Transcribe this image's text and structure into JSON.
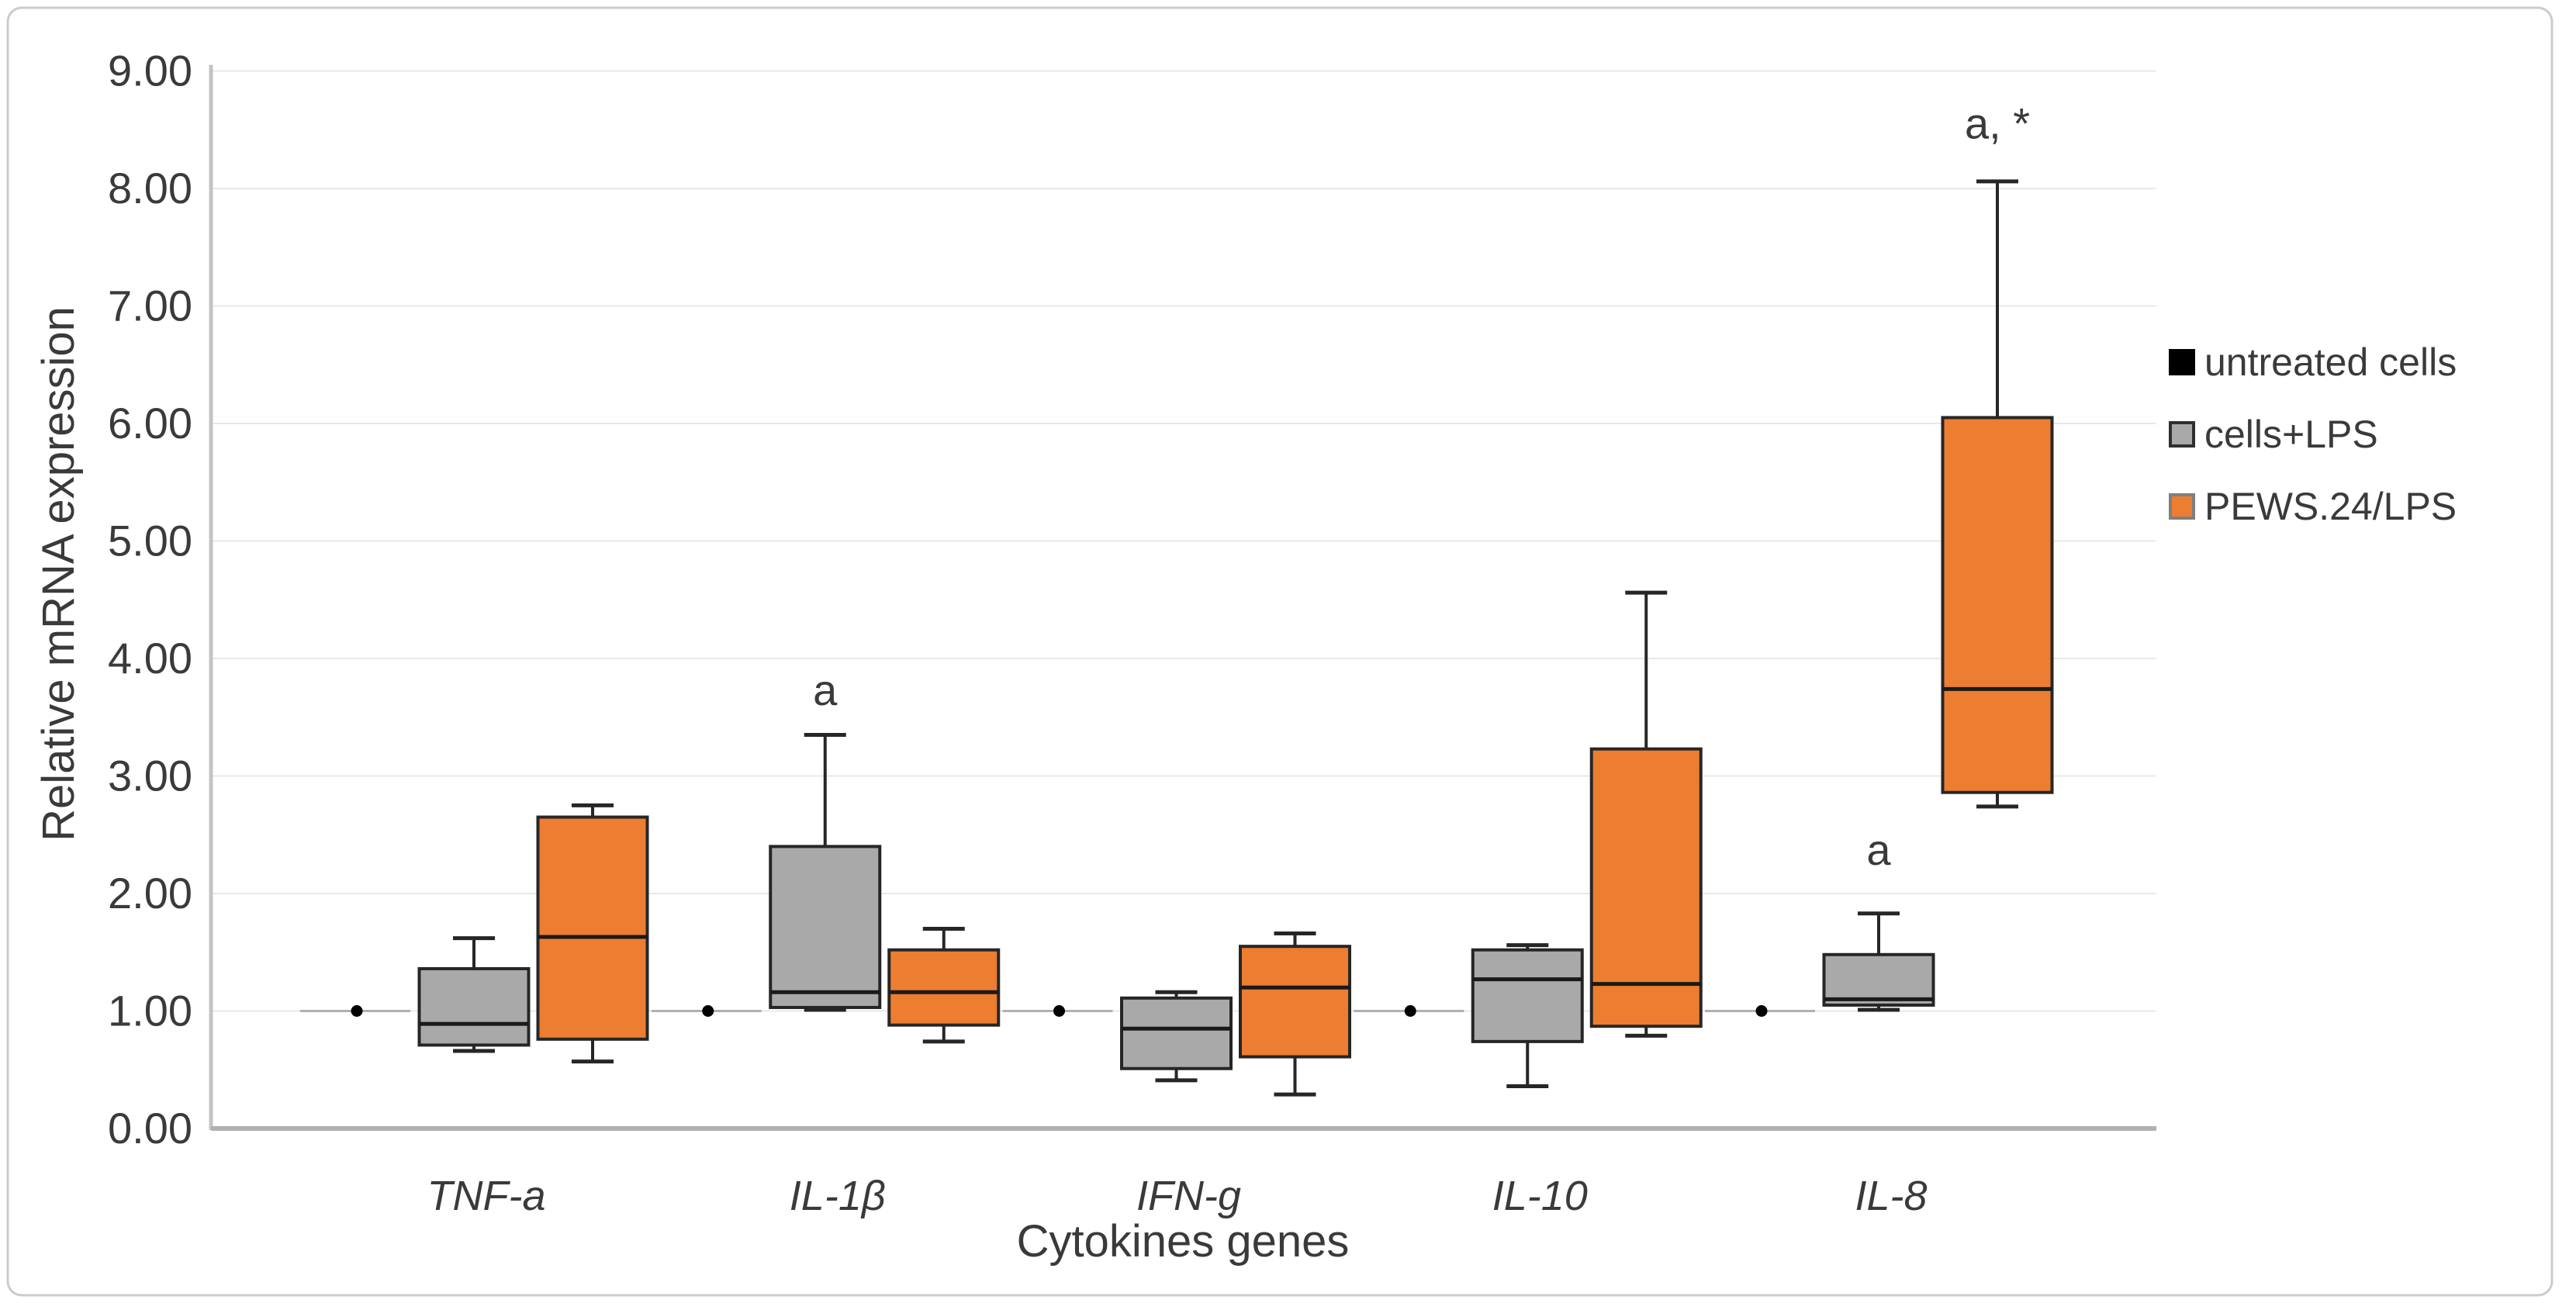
{
  "chart_data": {
    "type": "boxplot",
    "title": "",
    "xlabel": "Cytokines genes",
    "ylabel": "Relative mRNA expression",
    "ylim": [
      0,
      9
    ],
    "ytick_labels": [
      "0.00",
      "1.00",
      "2.00",
      "3.00",
      "4.00",
      "5.00",
      "6.00",
      "7.00",
      "8.00",
      "9.00"
    ],
    "grid": "horizontal",
    "legend_position": "right",
    "categories": [
      "TNF-a",
      "IL-1β",
      "IFN-g",
      "IL-10",
      "IL-8"
    ],
    "series": [
      {
        "name": "untreated cells",
        "type": "point",
        "color": "#000000",
        "values": [
          1.0,
          1.0,
          1.0,
          1.0,
          1.0
        ]
      },
      {
        "name": "cells+LPS",
        "type": "box",
        "color": "#A9A9A9",
        "boxes": [
          {
            "category": "TNF-a",
            "whisker_low": 0.66,
            "q1": 0.71,
            "median": 0.89,
            "q3": 1.36,
            "whisker_high": 1.62
          },
          {
            "category": "IL-1β",
            "whisker_low": 1.01,
            "q1": 1.03,
            "median": 1.16,
            "q3": 2.4,
            "whisker_high": 3.35
          },
          {
            "category": "IFN-g",
            "whisker_low": 0.41,
            "q1": 0.51,
            "median": 0.85,
            "q3": 1.11,
            "whisker_high": 1.16
          },
          {
            "category": "IL-10",
            "whisker_low": 0.36,
            "q1": 0.74,
            "median": 1.27,
            "q3": 1.52,
            "whisker_high": 1.56
          },
          {
            "category": "IL-8",
            "whisker_low": 1.01,
            "q1": 1.05,
            "median": 1.1,
            "q3": 1.48,
            "whisker_high": 1.83
          }
        ]
      },
      {
        "name": "PEWS.24/LPS",
        "type": "box",
        "color": "#ED7D31",
        "boxes": [
          {
            "category": "TNF-a",
            "whisker_low": 0.57,
            "q1": 0.76,
            "median": 1.63,
            "q3": 2.65,
            "whisker_high": 2.75
          },
          {
            "category": "IL-1β",
            "whisker_low": 0.74,
            "q1": 0.88,
            "median": 1.16,
            "q3": 1.52,
            "whisker_high": 1.7
          },
          {
            "category": "IFN-g",
            "whisker_low": 0.29,
            "q1": 0.61,
            "median": 1.2,
            "q3": 1.55,
            "whisker_high": 1.66
          },
          {
            "category": "IL-10",
            "whisker_low": 0.79,
            "q1": 0.87,
            "median": 1.23,
            "q3": 3.23,
            "whisker_high": 4.56
          },
          {
            "category": "IL-8",
            "whisker_low": 2.74,
            "q1": 2.86,
            "median": 3.74,
            "q3": 6.05,
            "whisker_high": 8.06
          }
        ]
      }
    ],
    "legend": [
      {
        "label": "untreated cells",
        "fill": "#000000",
        "border": "#000000"
      },
      {
        "label": "cells+LPS",
        "fill": "#A9A9A9",
        "border": "#2f2f2f"
      },
      {
        "label": "PEWS.24/LPS",
        "fill": "#ED7D31",
        "border": "#7f7f7f"
      }
    ],
    "annotations": [
      {
        "text": "a",
        "category": "IL-1β",
        "series": "cells+LPS",
        "y": 3.73
      },
      {
        "text": "a",
        "category": "IL-8",
        "series": "cells+LPS",
        "y": 2.37
      },
      {
        "text": "a, *",
        "category": "IL-8",
        "series": "PEWS.24/LPS",
        "y": 8.55
      }
    ],
    "colors": {
      "gridline": "#e8e8e8",
      "axis_line": "#b0b0b0",
      "box_stroke": "#262626",
      "median_stroke": "#1a1a1a",
      "untreated_line": "#b0b0b0",
      "text": "#3a3a3a",
      "frame": "#cbcbcb",
      "background": "#ffffff"
    }
  }
}
